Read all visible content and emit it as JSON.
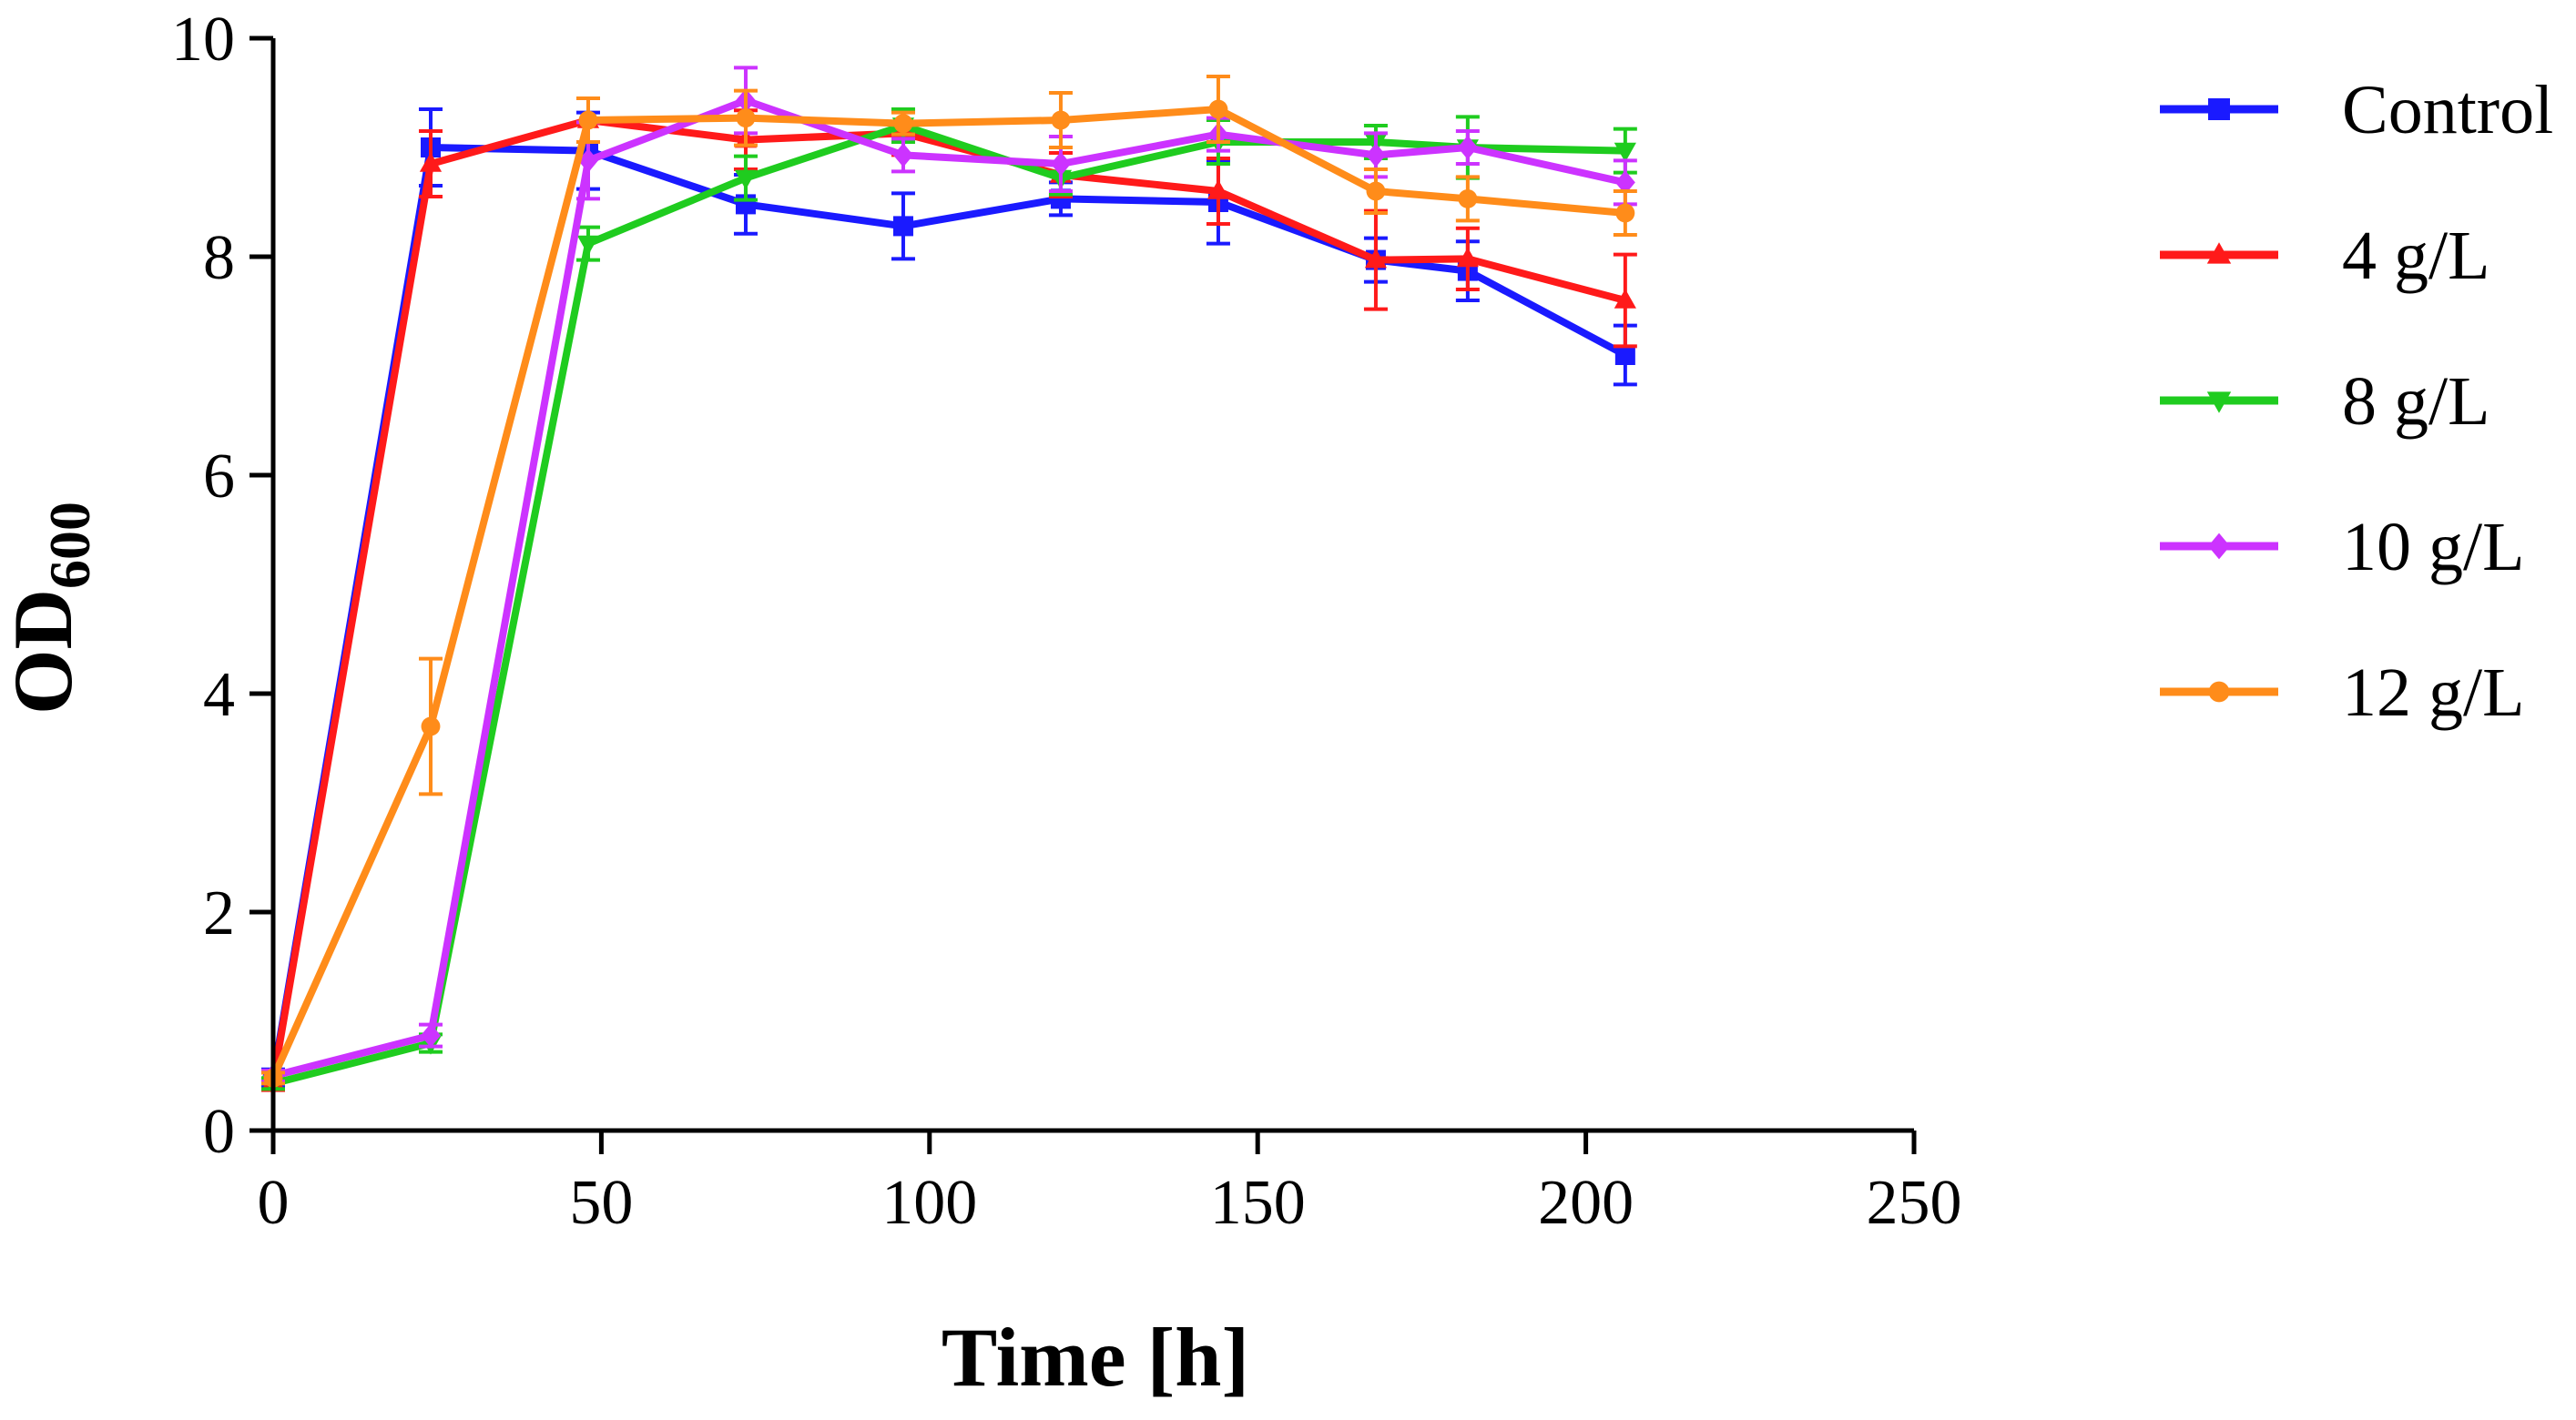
{
  "chart_data": {
    "type": "line",
    "xlabel": "Time [h]",
    "ylabel_main": "OD",
    "ylabel_sub": "600",
    "xlim": [
      0,
      250
    ],
    "ylim": [
      0,
      10
    ],
    "xticks": [
      0,
      50,
      100,
      150,
      200,
      250
    ],
    "yticks": [
      0,
      2,
      4,
      6,
      8,
      10
    ],
    "x": [
      0,
      24,
      48,
      72,
      96,
      120,
      144,
      168,
      182,
      206
    ],
    "legend_position": "right",
    "series": [
      {
        "name": "Control",
        "color": "#1a1aff",
        "marker": "square",
        "values": [
          0.48,
          9.0,
          8.97,
          8.48,
          8.28,
          8.53,
          8.5,
          7.97,
          7.87,
          7.1
        ],
        "errors": [
          0.08,
          0.35,
          0.35,
          0.27,
          0.3,
          0.15,
          0.38,
          0.2,
          0.27,
          0.27
        ]
      },
      {
        "name": "4 g/L",
        "color": "#ff1a1a",
        "marker": "triangle-up",
        "values": [
          0.45,
          8.85,
          9.25,
          9.07,
          9.13,
          8.75,
          8.6,
          7.97,
          7.98,
          7.6
        ],
        "errors": [
          0.08,
          0.3,
          0.2,
          0.27,
          0.2,
          0.2,
          0.3,
          0.45,
          0.28,
          0.42
        ]
      },
      {
        "name": "8 g/L",
        "color": "#1fcc1f",
        "marker": "triangle-down",
        "values": [
          0.43,
          0.8,
          8.12,
          8.72,
          9.2,
          8.72,
          9.05,
          9.05,
          9.0,
          8.97
        ],
        "errors": [
          0.05,
          0.08,
          0.15,
          0.2,
          0.15,
          0.15,
          0.2,
          0.15,
          0.28,
          0.2
        ]
      },
      {
        "name": "10 g/L",
        "color": "#cc33ff",
        "marker": "diamond",
        "values": [
          0.5,
          0.87,
          8.88,
          9.43,
          8.93,
          8.85,
          9.12,
          8.93,
          9.0,
          8.68
        ],
        "errors": [
          0.05,
          0.1,
          0.35,
          0.3,
          0.15,
          0.25,
          0.15,
          0.2,
          0.15,
          0.2
        ]
      },
      {
        "name": "12 g/L",
        "color": "#ff8c1a",
        "marker": "circle",
        "values": [
          0.48,
          3.7,
          9.25,
          9.27,
          9.22,
          9.25,
          9.35,
          8.6,
          8.53,
          8.4
        ],
        "errors": [
          0.05,
          0.62,
          0.2,
          0.25,
          0.1,
          0.25,
          0.3,
          0.2,
          0.2,
          0.2
        ]
      }
    ]
  }
}
